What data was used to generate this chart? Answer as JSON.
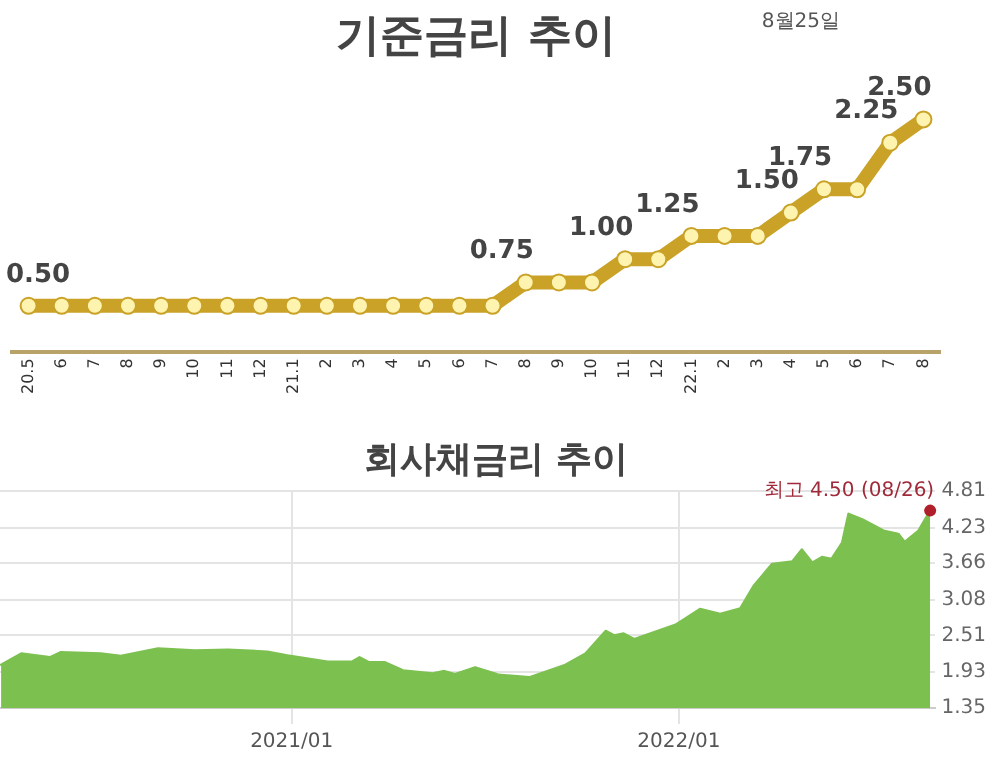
{
  "chart_data": [
    {
      "type": "line",
      "title": "기준금리 추이",
      "categories": [
        "20.5",
        "6",
        "7",
        "8",
        "9",
        "10",
        "11",
        "12",
        "21.1",
        "2",
        "3",
        "4",
        "5",
        "6",
        "7",
        "8",
        "9",
        "10",
        "11",
        "12",
        "22.1",
        "2",
        "3",
        "4",
        "5",
        "6",
        "7",
        "8"
      ],
      "series": [
        {
          "color": "#c9a227",
          "values": [
            0.5,
            0.5,
            0.5,
            0.5,
            0.5,
            0.5,
            0.5,
            0.5,
            0.5,
            0.5,
            0.5,
            0.5,
            0.5,
            0.5,
            0.5,
            0.75,
            0.75,
            0.75,
            1.0,
            1.0,
            1.25,
            1.25,
            1.25,
            1.5,
            1.75,
            1.75,
            2.25,
            2.5
          ],
          "value_labels": [
            "0.50",
            null,
            null,
            null,
            null,
            null,
            null,
            null,
            null,
            null,
            null,
            null,
            null,
            null,
            null,
            "0.75",
            null,
            null,
            "1.00",
            null,
            "1.25",
            null,
            null,
            "1.50",
            "1.75",
            null,
            "2.25",
            "2.50"
          ]
        }
      ],
      "marker": "circle",
      "tick_labels": "x",
      "grid": false,
      "legend": false,
      "annotations": [
        "8월25일"
      ]
    },
    {
      "type": "area",
      "title": "회사채금리 추이",
      "x": [
        "2020-04-02",
        "2020-04-21",
        "2020-05-18",
        "2020-05-28",
        "2020-07-05",
        "2020-07-24",
        "2020-08-28",
        "2020-10-02",
        "2020-11-02",
        "2020-12-09",
        "2020-12-28",
        "2021-02-04",
        "2021-02-27",
        "2021-03-06",
        "2021-03-15",
        "2021-03-30",
        "2021-04-16",
        "2021-05-14",
        "2021-05-25",
        "2021-06-04",
        "2021-06-23",
        "2021-07-12",
        "2021-07-15",
        "2021-08-13",
        "2021-09-16",
        "2021-10-05",
        "2021-10-24",
        "2021-11-01",
        "2021-11-10",
        "2021-11-20",
        "2021-12-29",
        "2022-01-21",
        "2022-02-09",
        "2022-02-28",
        "2022-03-13",
        "2022-03-30",
        "2022-04-18",
        "2022-04-27",
        "2022-05-07",
        "2022-05-16",
        "2022-05-25",
        "2022-06-04",
        "2022-06-10",
        "2022-06-23",
        "2022-07-13",
        "2022-07-27",
        "2022-08-02",
        "2022-08-15",
        "2022-08-26"
      ],
      "series": [
        {
          "color": "#7cc050",
          "values": [
            2.04,
            2.22,
            2.16,
            2.24,
            2.22,
            2.18,
            2.3,
            2.27,
            2.28,
            2.25,
            2.19,
            2.09,
            2.09,
            2.16,
            2.08,
            2.08,
            1.95,
            1.9,
            1.94,
            1.89,
            2.0,
            1.9,
            1.88,
            1.84,
            2.04,
            2.22,
            2.58,
            2.51,
            2.54,
            2.45,
            2.68,
            2.93,
            2.85,
            2.94,
            3.31,
            3.65,
            3.69,
            3.88,
            3.67,
            3.76,
            3.73,
            3.99,
            4.45,
            4.36,
            4.18,
            4.13,
            4.0,
            4.18,
            4.5
          ]
        }
      ],
      "xlim": [
        "2020-04-01",
        "2022-08-31"
      ],
      "xticks": [
        {
          "value": "2021-01",
          "label": "2021/01"
        },
        {
          "value": "2022-01",
          "label": "2022/01"
        }
      ],
      "ylim": [
        1.35,
        4.81
      ],
      "yticks": [
        {
          "value": 1.35,
          "label": "1.35"
        },
        {
          "value": 1.93,
          "label": "1.93"
        },
        {
          "value": 2.51,
          "label": "2.51"
        },
        {
          "value": 3.08,
          "label": "3.08"
        },
        {
          "value": 3.66,
          "label": "3.66"
        },
        {
          "value": 4.23,
          "label": "4.23"
        },
        {
          "value": 4.81,
          "label": "4.81"
        }
      ],
      "grid": true,
      "legend": false,
      "annotations": [
        {
          "text": "최고 4.50 (08/26)",
          "x": "2022-08-26",
          "y": 4.5
        }
      ]
    }
  ]
}
